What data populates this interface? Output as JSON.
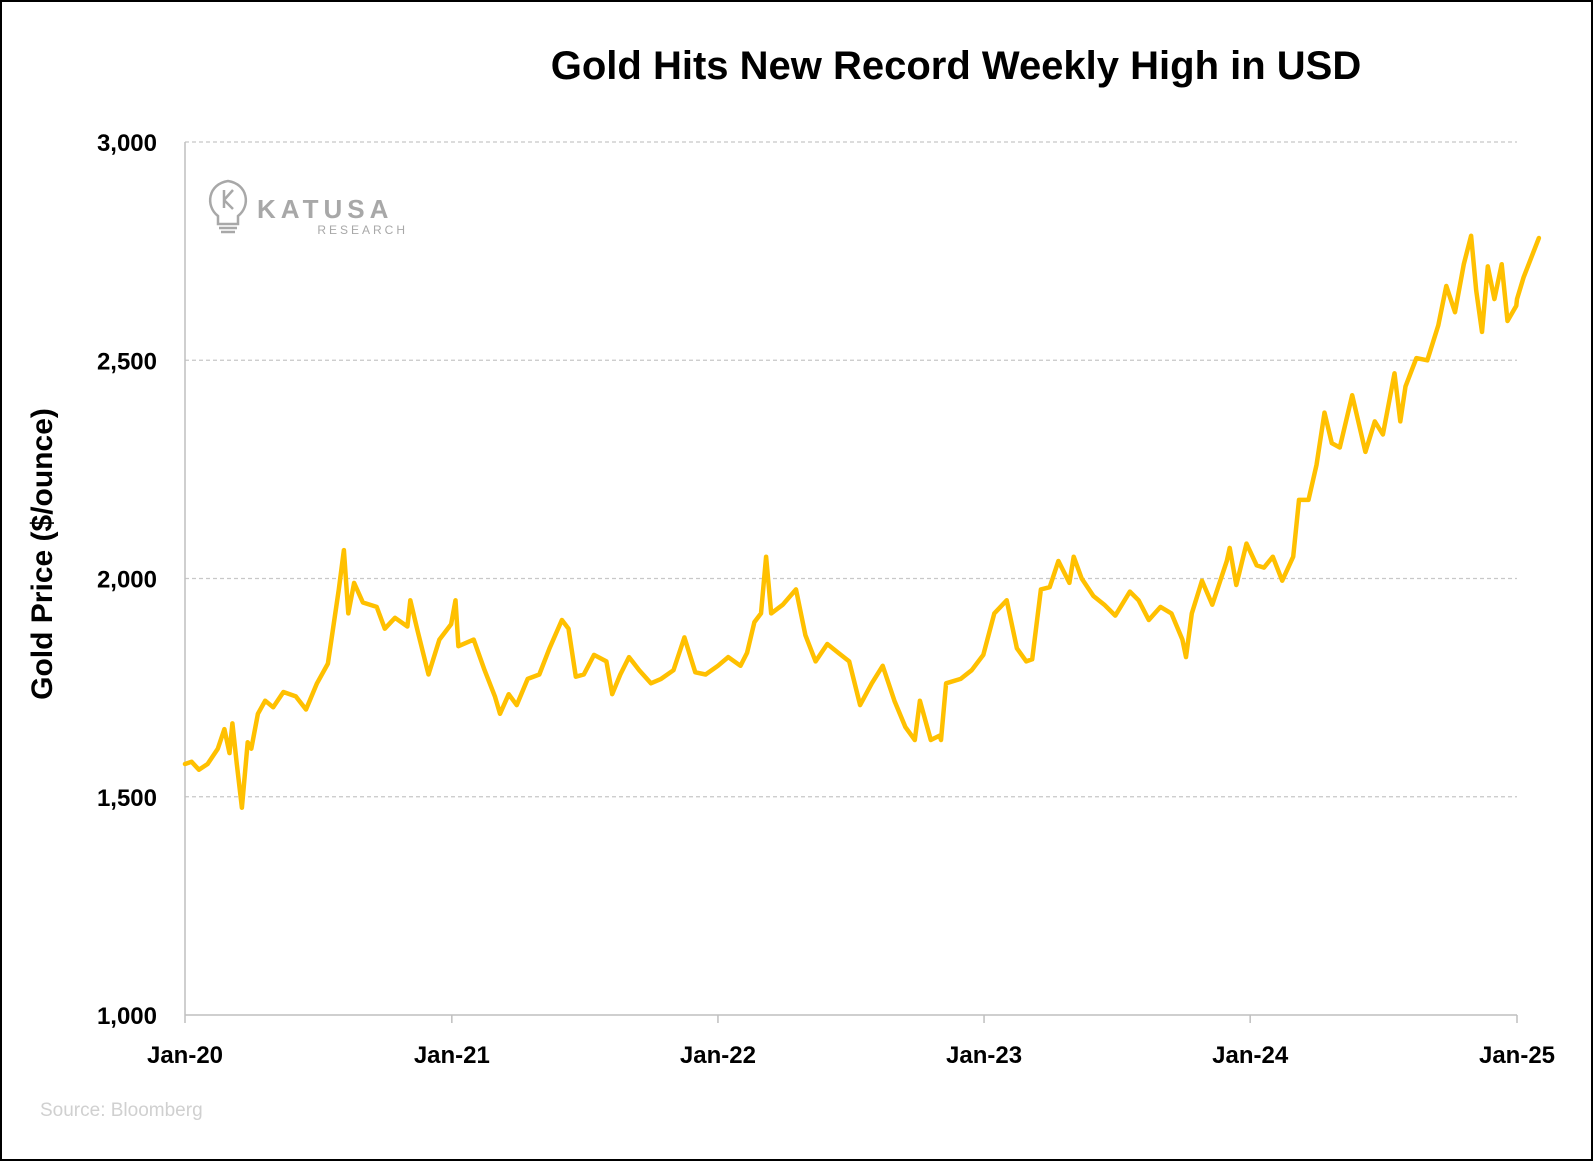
{
  "chart_data": {
    "type": "line",
    "title": "Gold Hits New Record Weekly High in USD",
    "ylabel": "Gold Price ($/ounce)",
    "xlabel": "",
    "xlim": [
      "2020-01-01",
      "2025-01-01"
    ],
    "ylim": [
      1000,
      3000
    ],
    "yticks": [
      {
        "value": 1000,
        "label": "1,000"
      },
      {
        "value": 1500,
        "label": "1,500"
      },
      {
        "value": 2000,
        "label": "2,000"
      },
      {
        "value": 2500,
        "label": "2,500"
      },
      {
        "value": 3000,
        "label": "3,000"
      }
    ],
    "xticks": [
      {
        "value": "2020-01-01",
        "label": "Jan-20"
      },
      {
        "value": "2021-01-01",
        "label": "Jan-21"
      },
      {
        "value": "2022-01-01",
        "label": "Jan-22"
      },
      {
        "value": "2023-01-01",
        "label": "Jan-23"
      },
      {
        "value": "2024-01-01",
        "label": "Jan-24"
      },
      {
        "value": "2025-01-01",
        "label": "Jan-25"
      }
    ],
    "grid": "horizontal-dashed",
    "legend": "none",
    "series": [
      {
        "color": "#FFC000",
        "points": [
          [
            "2020-01-01",
            1575
          ],
          [
            "2020-01-10",
            1580
          ],
          [
            "2020-01-20",
            1562
          ],
          [
            "2020-02-01",
            1575
          ],
          [
            "2020-02-15",
            1610
          ],
          [
            "2020-02-24",
            1655
          ],
          [
            "2020-03-02",
            1600
          ],
          [
            "2020-03-06",
            1668
          ],
          [
            "2020-03-12",
            1575
          ],
          [
            "2020-03-19",
            1475
          ],
          [
            "2020-03-27",
            1625
          ],
          [
            "2020-04-01",
            1610
          ],
          [
            "2020-04-10",
            1690
          ],
          [
            "2020-04-20",
            1720
          ],
          [
            "2020-05-01",
            1705
          ],
          [
            "2020-05-15",
            1740
          ],
          [
            "2020-06-01",
            1730
          ],
          [
            "2020-06-15",
            1700
          ],
          [
            "2020-06-30",
            1760
          ],
          [
            "2020-07-15",
            1805
          ],
          [
            "2020-07-30",
            1975
          ],
          [
            "2020-08-06",
            2065
          ],
          [
            "2020-08-12",
            1920
          ],
          [
            "2020-08-20",
            1990
          ],
          [
            "2020-09-01",
            1945
          ],
          [
            "2020-09-20",
            1935
          ],
          [
            "2020-10-01",
            1885
          ],
          [
            "2020-10-15",
            1910
          ],
          [
            "2020-11-01",
            1890
          ],
          [
            "2020-11-05",
            1950
          ],
          [
            "2020-11-15",
            1880
          ],
          [
            "2020-11-30",
            1780
          ],
          [
            "2020-12-15",
            1860
          ],
          [
            "2020-12-31",
            1895
          ],
          [
            "2021-01-06",
            1950
          ],
          [
            "2021-01-10",
            1845
          ],
          [
            "2021-01-31",
            1860
          ],
          [
            "2021-02-15",
            1790
          ],
          [
            "2021-03-01",
            1730
          ],
          [
            "2021-03-08",
            1690
          ],
          [
            "2021-03-20",
            1735
          ],
          [
            "2021-03-31",
            1710
          ],
          [
            "2021-04-15",
            1770
          ],
          [
            "2021-05-01",
            1780
          ],
          [
            "2021-05-15",
            1840
          ],
          [
            "2021-06-01",
            1905
          ],
          [
            "2021-06-10",
            1885
          ],
          [
            "2021-06-20",
            1775
          ],
          [
            "2021-07-01",
            1780
          ],
          [
            "2021-07-15",
            1825
          ],
          [
            "2021-08-01",
            1810
          ],
          [
            "2021-08-09",
            1735
          ],
          [
            "2021-08-20",
            1780
          ],
          [
            "2021-09-01",
            1820
          ],
          [
            "2021-09-15",
            1790
          ],
          [
            "2021-10-01",
            1760
          ],
          [
            "2021-10-15",
            1770
          ],
          [
            "2021-11-01",
            1790
          ],
          [
            "2021-11-16",
            1865
          ],
          [
            "2021-12-01",
            1785
          ],
          [
            "2021-12-15",
            1780
          ],
          [
            "2022-01-01",
            1800
          ],
          [
            "2022-01-15",
            1820
          ],
          [
            "2022-02-01",
            1800
          ],
          [
            "2022-02-10",
            1830
          ],
          [
            "2022-02-20",
            1900
          ],
          [
            "2022-03-01",
            1920
          ],
          [
            "2022-03-08",
            2050
          ],
          [
            "2022-03-15",
            1920
          ],
          [
            "2022-03-31",
            1940
          ],
          [
            "2022-04-18",
            1975
          ],
          [
            "2022-05-01",
            1870
          ],
          [
            "2022-05-15",
            1810
          ],
          [
            "2022-05-31",
            1850
          ],
          [
            "2022-06-15",
            1830
          ],
          [
            "2022-06-30",
            1810
          ],
          [
            "2022-07-15",
            1710
          ],
          [
            "2022-07-31",
            1760
          ],
          [
            "2022-08-15",
            1800
          ],
          [
            "2022-08-31",
            1720
          ],
          [
            "2022-09-15",
            1660
          ],
          [
            "2022-09-28",
            1630
          ],
          [
            "2022-10-05",
            1720
          ],
          [
            "2022-10-20",
            1630
          ],
          [
            "2022-11-01",
            1640
          ],
          [
            "2022-11-03",
            1630
          ],
          [
            "2022-11-10",
            1760
          ],
          [
            "2022-11-30",
            1770
          ],
          [
            "2022-12-15",
            1790
          ],
          [
            "2022-12-31",
            1825
          ],
          [
            "2023-01-15",
            1920
          ],
          [
            "2023-02-01",
            1950
          ],
          [
            "2023-02-15",
            1840
          ],
          [
            "2023-02-28",
            1810
          ],
          [
            "2023-03-08",
            1815
          ],
          [
            "2023-03-20",
            1975
          ],
          [
            "2023-04-01",
            1980
          ],
          [
            "2023-04-13",
            2040
          ],
          [
            "2023-04-28",
            1990
          ],
          [
            "2023-05-04",
            2050
          ],
          [
            "2023-05-15",
            2000
          ],
          [
            "2023-05-31",
            1960
          ],
          [
            "2023-06-15",
            1940
          ],
          [
            "2023-06-30",
            1915
          ],
          [
            "2023-07-20",
            1970
          ],
          [
            "2023-08-01",
            1950
          ],
          [
            "2023-08-15",
            1905
          ],
          [
            "2023-08-31",
            1935
          ],
          [
            "2023-09-15",
            1920
          ],
          [
            "2023-09-30",
            1860
          ],
          [
            "2023-10-05",
            1820
          ],
          [
            "2023-10-13",
            1920
          ],
          [
            "2023-10-27",
            1995
          ],
          [
            "2023-11-10",
            1940
          ],
          [
            "2023-11-30",
            2040
          ],
          [
            "2023-12-04",
            2070
          ],
          [
            "2023-12-13",
            1985
          ],
          [
            "2023-12-27",
            2080
          ],
          [
            "2024-01-10",
            2030
          ],
          [
            "2024-01-20",
            2025
          ],
          [
            "2024-02-01",
            2050
          ],
          [
            "2024-02-14",
            1995
          ],
          [
            "2024-02-29",
            2050
          ],
          [
            "2024-03-08",
            2180
          ],
          [
            "2024-03-21",
            2180
          ],
          [
            "2024-04-01",
            2260
          ],
          [
            "2024-04-12",
            2380
          ],
          [
            "2024-04-22",
            2310
          ],
          [
            "2024-05-03",
            2300
          ],
          [
            "2024-05-20",
            2420
          ],
          [
            "2024-06-07",
            2290
          ],
          [
            "2024-06-20",
            2360
          ],
          [
            "2024-07-01",
            2330
          ],
          [
            "2024-07-17",
            2470
          ],
          [
            "2024-07-25",
            2360
          ],
          [
            "2024-08-01",
            2440
          ],
          [
            "2024-08-16",
            2505
          ],
          [
            "2024-08-31",
            2500
          ],
          [
            "2024-09-15",
            2580
          ],
          [
            "2024-09-26",
            2670
          ],
          [
            "2024-10-08",
            2610
          ],
          [
            "2024-10-20",
            2720
          ],
          [
            "2024-10-30",
            2785
          ],
          [
            "2024-11-06",
            2660
          ],
          [
            "2024-11-14",
            2565
          ],
          [
            "2024-11-22",
            2715
          ],
          [
            "2024-12-01",
            2640
          ],
          [
            "2024-12-11",
            2720
          ],
          [
            "2024-12-19",
            2590
          ],
          [
            "2024-12-31",
            2625
          ],
          [
            "2025-01-01",
            2640
          ],
          [
            "2025-01-10",
            2690
          ],
          [
            "2025-01-31",
            2780
          ]
        ]
      }
    ]
  },
  "logo": {
    "name": "KATUSA",
    "sub": "RESEARCH",
    "icon": "lightbulb-k-icon"
  },
  "source": "Source: Bloomberg"
}
